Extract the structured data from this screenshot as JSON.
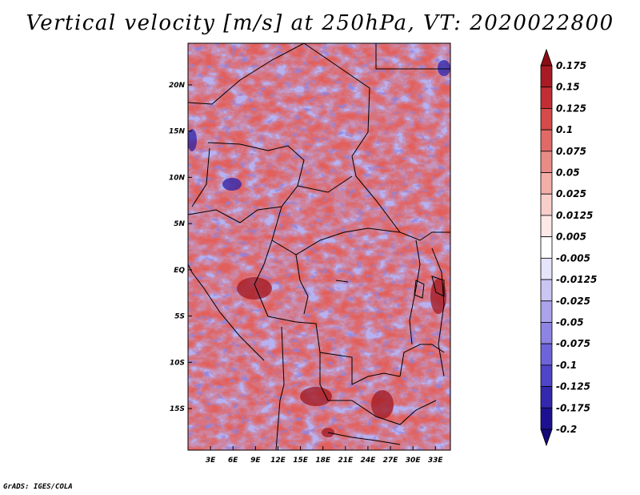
{
  "title": "Vertical velocity [m/s] at 250hPa, VT: 2020022800",
  "credit": "GrADS: IGES/COLA",
  "map": {
    "lat_ticks": [
      "20N",
      "15N",
      "10N",
      "5N",
      "EQ",
      "5S",
      "10S",
      "15S"
    ],
    "lon_ticks": [
      "3E",
      "6E",
      "9E",
      "12E",
      "15E",
      "18E",
      "21E",
      "24E",
      "27E",
      "30E",
      "33E"
    ],
    "lat_values": [
      20,
      15,
      10,
      5,
      0,
      -5,
      -10,
      -15
    ],
    "lon_values": [
      3,
      6,
      9,
      12,
      15,
      18,
      21,
      24,
      27,
      30,
      33
    ],
    "lon_range": [
      0,
      35
    ],
    "lat_range": [
      -19.5,
      24.5
    ]
  },
  "colorbar": {
    "levels": [
      "0.175",
      "0.15",
      "0.125",
      "0.1",
      "0.075",
      "0.05",
      "0.025",
      "0.0125",
      "0.005",
      "-0.005",
      "-0.0125",
      "-0.025",
      "-0.05",
      "-0.075",
      "-0.1",
      "-0.125",
      "-0.175",
      "-0.2"
    ],
    "colors": [
      "#8a0d16",
      "#a81b24",
      "#c22e34",
      "#d54a4a",
      "#e06a66",
      "#ea8c86",
      "#f3aea8",
      "#f8cecb",
      "#fce8e6",
      "#ffffff",
      "#e6e4fa",
      "#cac6f3",
      "#aba4ec",
      "#8d84e4",
      "#6e64da",
      "#4e45c8",
      "#3328ae",
      "#1d1192",
      "#140a78"
    ]
  }
}
